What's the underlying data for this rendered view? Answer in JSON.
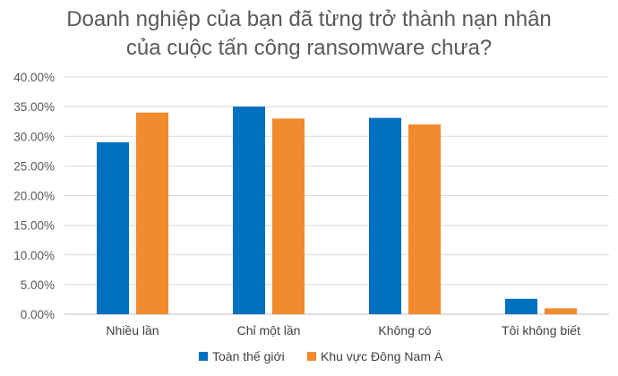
{
  "chart_data": {
    "type": "bar",
    "title_lines": [
      "Doanh nghiệp của bạn đã từng trở thành nạn nhân",
      "của cuộc tấn công ransomware chưa?"
    ],
    "categories": [
      "Nhiều lần",
      "Chỉ một lần",
      "Không có",
      "Tôi không biết"
    ],
    "series": [
      {
        "name": "Toàn thế giới",
        "color": "#0070C0",
        "values": [
          29,
          35,
          33.1,
          2.6
        ]
      },
      {
        "name": "Khu vực Đông Nam Á",
        "color": "#F28A2E",
        "values": [
          34,
          33,
          32,
          1
        ]
      }
    ],
    "y_ticks": [
      "0.00%",
      "5.00%",
      "10.00%",
      "15.00%",
      "20.00%",
      "25.00%",
      "30.00%",
      "35.00%",
      "40.00%"
    ],
    "ylim": [
      0,
      40
    ],
    "y_unit": "%",
    "grid": true,
    "legend_position": "bottom"
  }
}
